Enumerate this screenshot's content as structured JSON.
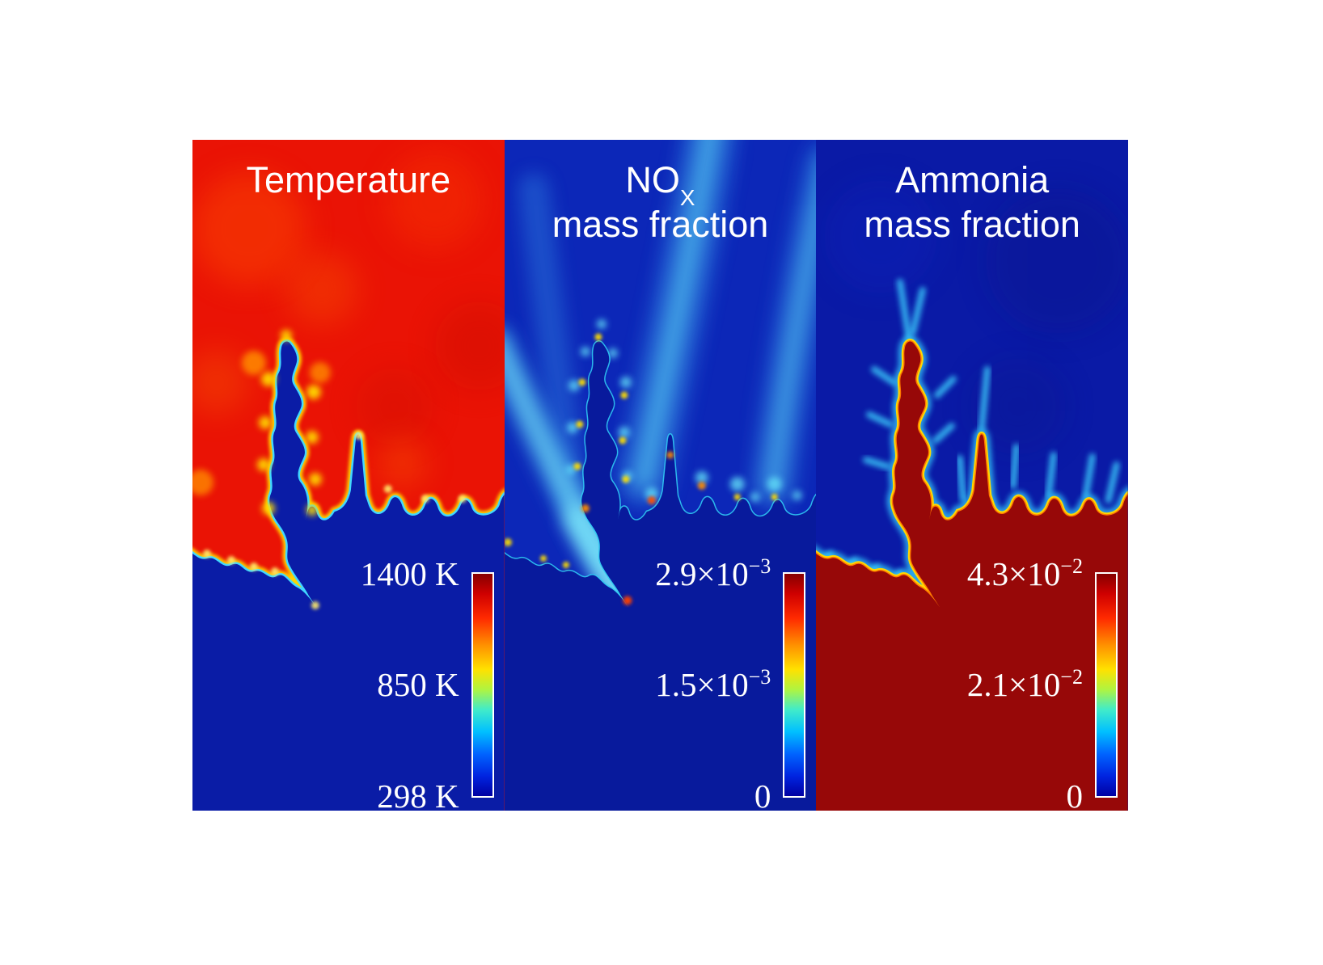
{
  "figure": {
    "description": "Three-panel reacting-flow simulation snapshot with jet colorbars",
    "panels": [
      {
        "id": "temperature",
        "title": {
          "line1": "Temperature"
        },
        "colorbar": {
          "max": "1400 K",
          "mid": "850 K",
          "min": "298 K"
        }
      },
      {
        "id": "nox",
        "title": {
          "main": "NO",
          "sub": "X",
          "line2": "mass fraction"
        },
        "colorbar": {
          "max": {
            "m": "2.9×10",
            "e": "−3"
          },
          "mid": {
            "m": "1.5×10",
            "e": "−3"
          },
          "min": "0"
        }
      },
      {
        "id": "ammonia",
        "title": {
          "line1": "Ammonia",
          "line2": "mass fraction"
        },
        "colorbar": {
          "max": {
            "m": "4.3×10",
            "e": "−2"
          },
          "mid": {
            "m": "2.1×10",
            "e": "−2"
          },
          "min": "0"
        }
      }
    ],
    "palette": {
      "temp_red": "#ea1305",
      "unburnt_blue": "#0a1ca6",
      "nox_bg": "#0c27b8",
      "nox_unburnt": "#081a9c",
      "ammonia_bg": "#0a1aa6",
      "ammonia_red": "#970808",
      "rim_yellow": "#ffdf00",
      "rim_cyan": "#41d7ff",
      "rim_orange": "#ff7a00",
      "streak_cyan": "#58d4f4",
      "glow_orange": "#ff8c00",
      "label_white": "#ffffff"
    }
  },
  "chart_data": [
    {
      "type": "heatmap",
      "title": "Temperature",
      "colormap": "jet",
      "colorbar_ticks": [
        "1400 K",
        "850 K",
        "298 K"
      ],
      "range": {
        "min": 298,
        "mid": 850,
        "max": 1400,
        "unit": "K"
      },
      "legend_position": "bottom-right vertical colorbar",
      "content": "Hot burnt gas (red, ~1400 K) above a wrinkled fingered flame front; cold unburnt mixture (dark blue, 298 K) fills the lower-right, lower-left and a narrow central channel"
    },
    {
      "type": "heatmap",
      "title": "NOx mass fraction",
      "colormap": "jet",
      "colorbar_ticks": [
        "2.9×10⁻³",
        "1.5×10⁻³",
        "0"
      ],
      "range": {
        "min": 0,
        "mid": 0.0015,
        "max": 0.0029
      },
      "legend_position": "bottom-right vertical colorbar",
      "content": "Low NOx everywhere (dark blue) with cyan plumes of elevated NOx trailing from the flame front and bright yellow-red spots at flame finger tips"
    },
    {
      "type": "heatmap",
      "title": "Ammonia mass fraction",
      "colormap": "jet",
      "colorbar_ticks": [
        "4.3×10⁻²",
        "2.1×10⁻²",
        "0"
      ],
      "range": {
        "min": 0,
        "mid": 0.021,
        "max": 0.043
      },
      "legend_position": "bottom-right vertical colorbar",
      "content": "Unburnt ammonia-rich mixture (dark red, 4.3×10⁻²) in the lower region and central channel, zero ammonia (dark blue) in burnt gas, thin yellow-cyan reaction rim along the front"
    }
  ]
}
